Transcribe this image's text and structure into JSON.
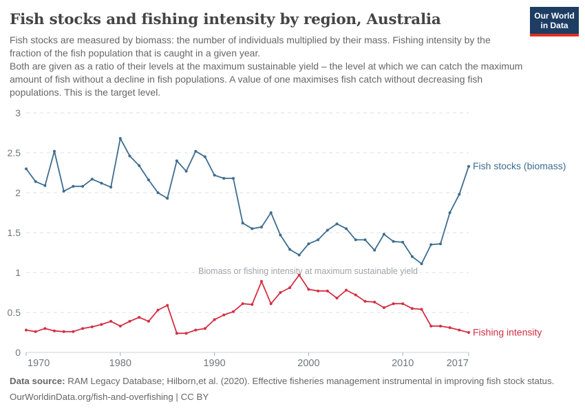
{
  "header": {
    "title": "Fish stocks and fishing intensity by region, Australia",
    "subtitle_1": "Fish stocks are measured by biomass: the number of individuals multiplied by their mass. Fishing intensity by the fraction of the fish population that is caught in a given year.",
    "subtitle_2": "Both are given as a ratio of their levels at the maximum sustainable yield – the level at which we can catch the maximum amount of fish without a decline in fish populations. A value of one maximises fish catch without decreasing fish populations. This is the target level."
  },
  "logo": {
    "line1": "Our World",
    "line2": "in Data",
    "bg_color": "#1d3d63",
    "stripe_color": "#e0301f"
  },
  "chart_data": {
    "type": "line",
    "x": [
      1970,
      1971,
      1972,
      1973,
      1974,
      1975,
      1976,
      1977,
      1978,
      1979,
      1980,
      1981,
      1982,
      1983,
      1984,
      1985,
      1986,
      1987,
      1988,
      1989,
      1990,
      1991,
      1992,
      1993,
      1994,
      1995,
      1996,
      1997,
      1998,
      1999,
      2000,
      2001,
      2002,
      2003,
      2004,
      2005,
      2006,
      2007,
      2008,
      2009,
      2010,
      2011,
      2012,
      2013,
      2014,
      2015,
      2016,
      2017
    ],
    "series": [
      {
        "name": "Fish stocks (biomass)",
        "color": "#3d6c8f",
        "values": [
          2.3,
          2.14,
          2.09,
          2.52,
          2.02,
          2.08,
          2.08,
          2.17,
          2.12,
          2.07,
          2.68,
          2.46,
          2.34,
          2.16,
          2.0,
          1.93,
          2.4,
          2.27,
          2.52,
          2.45,
          2.22,
          2.18,
          2.18,
          1.62,
          1.55,
          1.57,
          1.75,
          1.47,
          1.29,
          1.22,
          1.36,
          1.41,
          1.53,
          1.61,
          1.55,
          1.41,
          1.41,
          1.28,
          1.48,
          1.39,
          1.38,
          1.2,
          1.11,
          1.35,
          1.36,
          1.75,
          1.98,
          2.33
        ]
      },
      {
        "name": "Fishing intensity",
        "color": "#d32f42",
        "values": [
          0.28,
          0.26,
          0.3,
          0.27,
          0.26,
          0.26,
          0.3,
          0.32,
          0.35,
          0.39,
          0.33,
          0.39,
          0.44,
          0.39,
          0.53,
          0.59,
          0.24,
          0.24,
          0.28,
          0.3,
          0.41,
          0.47,
          0.51,
          0.61,
          0.6,
          0.89,
          0.61,
          0.75,
          0.81,
          0.97,
          0.79,
          0.77,
          0.77,
          0.68,
          0.78,
          0.72,
          0.64,
          0.63,
          0.56,
          0.61,
          0.61,
          0.55,
          0.54,
          0.33,
          0.33,
          0.31,
          0.28,
          0.25
        ]
      }
    ],
    "title": "Fish stocks and fishing intensity by region, Australia",
    "xlabel": "",
    "ylabel": "",
    "ylim": [
      0,
      3
    ],
    "yticks": [
      0,
      0.5,
      1,
      1.5,
      2,
      2.5,
      3
    ],
    "xticks": [
      1970,
      1980,
      1990,
      2000,
      2010,
      2017
    ],
    "grid": true,
    "legend_position": "end-of-line",
    "annotation": "Biomass or fishing intensity at maximum sustainable yield",
    "annotation_y": 1
  },
  "footer": {
    "datasource_label": "Data source:",
    "datasource_text": " RAM Legacy Database; Hilborn,et al. (2020). Effective fisheries management instrumental in improving fish stock status.",
    "license_line": "OurWorldinData.org/fish-and-overfishing | CC BY"
  }
}
